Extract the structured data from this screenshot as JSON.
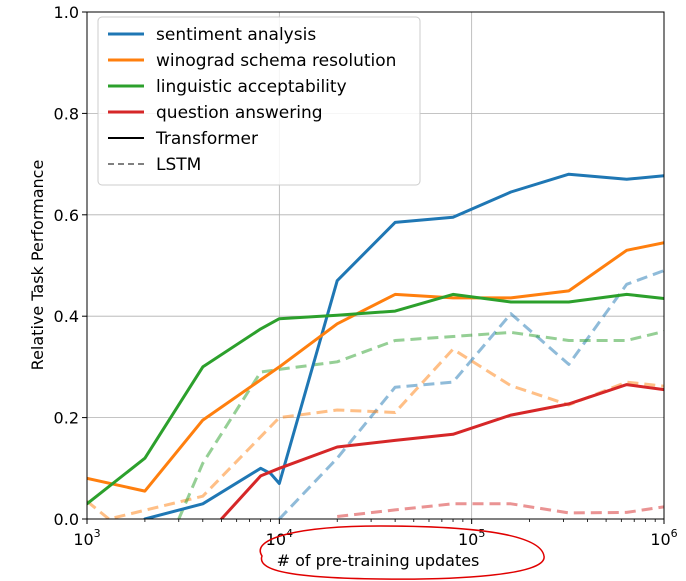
{
  "chart_data": {
    "type": "line",
    "xscale": "log",
    "xlim": [
      1000,
      1000000
    ],
    "ylim": [
      0.0,
      1.0
    ],
    "xlabel": "# of pre-training updates",
    "ylabel": "Relative Task Performance",
    "x_ticks": [
      {
        "value": 1000,
        "base": "10",
        "exp": "3"
      },
      {
        "value": 10000,
        "base": "10",
        "exp": "4"
      },
      {
        "value": 100000,
        "base": "10",
        "exp": "5"
      },
      {
        "value": 1000000,
        "base": "10",
        "exp": "6"
      }
    ],
    "y_ticks": [
      {
        "value": 0.0,
        "label": "0.0"
      },
      {
        "value": 0.2,
        "label": "0.2"
      },
      {
        "value": 0.4,
        "label": "0.4"
      },
      {
        "value": 0.6,
        "label": "0.6"
      },
      {
        "value": 0.8,
        "label": "0.8"
      },
      {
        "value": 1.0,
        "label": "1.0"
      }
    ],
    "grid": true,
    "legend_position": "top-left",
    "legend": [
      {
        "label": "sentiment analysis",
        "color": "#1f77b4",
        "style": "solid"
      },
      {
        "label": "winograd schema resolution",
        "color": "#ff7f0e",
        "style": "solid"
      },
      {
        "label": "linguistic acceptability",
        "color": "#2ca02c",
        "style": "solid"
      },
      {
        "label": "question answering",
        "color": "#d62728",
        "style": "solid"
      },
      {
        "label": "Transformer",
        "color": "#000000",
        "style": "solid"
      },
      {
        "label": "LSTM",
        "color": "#808080",
        "style": "dashed"
      }
    ],
    "series": [
      {
        "task": "sentiment analysis",
        "model": "Transformer",
        "color": "#1f77b4",
        "style": "solid",
        "x": [
          2000,
          4000,
          8000,
          9000,
          10000,
          20000,
          40000,
          80000,
          160000,
          320000,
          640000,
          1000000
        ],
        "y": [
          0.0,
          0.03,
          0.1,
          0.09,
          0.07,
          0.47,
          0.585,
          0.595,
          0.645,
          0.68,
          0.67,
          0.677
        ]
      },
      {
        "task": "winograd schema resolution",
        "model": "Transformer",
        "color": "#ff7f0e",
        "style": "solid",
        "x": [
          1000,
          2000,
          4000,
          10000,
          20000,
          40000,
          80000,
          160000,
          320000,
          640000,
          1000000
        ],
        "y": [
          0.08,
          0.055,
          0.195,
          0.3,
          0.385,
          0.443,
          0.436,
          0.436,
          0.45,
          0.53,
          0.545
        ]
      },
      {
        "task": "linguistic acceptability",
        "model": "Transformer",
        "color": "#2ca02c",
        "style": "solid",
        "x": [
          1000,
          2000,
          4000,
          8000,
          10000,
          20000,
          40000,
          80000,
          160000,
          320000,
          640000,
          1000000
        ],
        "y": [
          0.03,
          0.12,
          0.3,
          0.375,
          0.395,
          0.402,
          0.41,
          0.443,
          0.428,
          0.428,
          0.443,
          0.435
        ]
      },
      {
        "task": "question answering",
        "model": "Transformer",
        "color": "#d62728",
        "style": "solid",
        "x": [
          5000,
          8000,
          10000,
          20000,
          40000,
          80000,
          160000,
          320000,
          640000,
          1000000
        ],
        "y": [
          0.0,
          0.085,
          0.1,
          0.142,
          0.155,
          0.167,
          0.205,
          0.227,
          0.265,
          0.255
        ]
      },
      {
        "task": "sentiment analysis",
        "model": "LSTM",
        "color": "#1f77b4",
        "style": "dashed",
        "x": [
          10000,
          20000,
          40000,
          80000,
          160000,
          320000,
          640000,
          1000000
        ],
        "y": [
          0.0,
          0.12,
          0.26,
          0.27,
          0.405,
          0.305,
          0.463,
          0.49
        ]
      },
      {
        "task": "winograd schema resolution",
        "model": "LSTM",
        "color": "#ff7f0e",
        "style": "dashed",
        "x": [
          1000,
          1300,
          4000,
          10000,
          20000,
          40000,
          80000,
          160000,
          320000,
          640000,
          1000000
        ],
        "y": [
          0.035,
          0.0,
          0.045,
          0.2,
          0.215,
          0.21,
          0.335,
          0.263,
          0.225,
          0.27,
          0.262
        ]
      },
      {
        "task": "linguistic acceptability",
        "model": "LSTM",
        "color": "#2ca02c",
        "style": "dashed",
        "x": [
          3000,
          4000,
          8000,
          10000,
          20000,
          40000,
          80000,
          160000,
          320000,
          640000,
          1000000
        ],
        "y": [
          0.0,
          0.11,
          0.29,
          0.295,
          0.31,
          0.352,
          0.36,
          0.368,
          0.352,
          0.352,
          0.37
        ]
      },
      {
        "task": "question answering",
        "model": "LSTM",
        "color": "#d62728",
        "style": "dashed",
        "x": [
          20000,
          40000,
          80000,
          160000,
          320000,
          640000,
          1000000
        ],
        "y": [
          0.005,
          0.018,
          0.03,
          0.03,
          0.012,
          0.013,
          0.024
        ]
      }
    ]
  }
}
